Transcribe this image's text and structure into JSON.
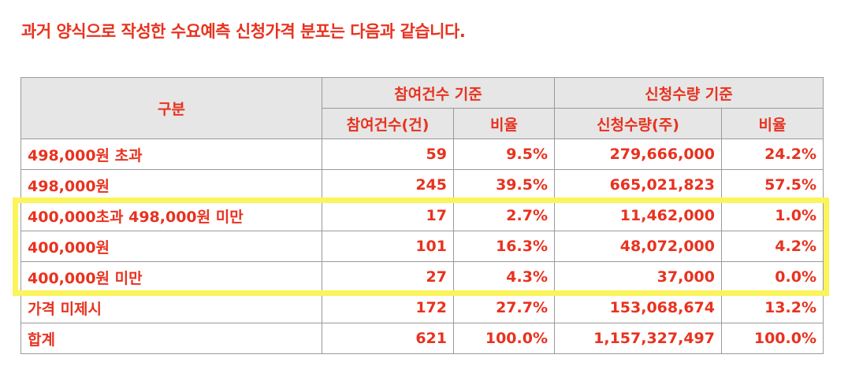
{
  "heading": "과거 양식으로 작성한 수요예측 신청가격 분포는 다음과 같습니다.",
  "table": {
    "header": {
      "category": "구분",
      "group_participants": "참여건수 기준",
      "group_quantity": "신청수량 기준",
      "participants_count": "참여건수(건)",
      "participants_ratio": "비율",
      "quantity_amount": "신청수량(주)",
      "quantity_ratio": "비율"
    },
    "rows": [
      {
        "category": "498,000원 초과",
        "count": "59",
        "count_ratio": "9.5%",
        "quantity": "279,666,000",
        "quantity_ratio": "24.2%"
      },
      {
        "category": "498,000원",
        "count": "245",
        "count_ratio": "39.5%",
        "quantity": "665,021,823",
        "quantity_ratio": "57.5%"
      },
      {
        "category": "400,000초과 498,000원 미만",
        "count": "17",
        "count_ratio": "2.7%",
        "quantity": "11,462,000",
        "quantity_ratio": "1.0%"
      },
      {
        "category": "400,000원",
        "count": "101",
        "count_ratio": "16.3%",
        "quantity": "48,072,000",
        "quantity_ratio": "4.2%"
      },
      {
        "category": "400,000원 미만",
        "count": "27",
        "count_ratio": "4.3%",
        "quantity": "37,000",
        "quantity_ratio": "0.0%"
      },
      {
        "category": "가격 미제시",
        "count": "172",
        "count_ratio": "27.7%",
        "quantity": "153,068,674",
        "quantity_ratio": "13.2%"
      },
      {
        "category": "합계",
        "count": "621",
        "count_ratio": "100.0%",
        "quantity": "1,157,327,497",
        "quantity_ratio": "100.0%"
      }
    ]
  },
  "highlight_color": "#fbf45a",
  "text_color": "#e8321f",
  "header_bg": "#e6e6e6"
}
